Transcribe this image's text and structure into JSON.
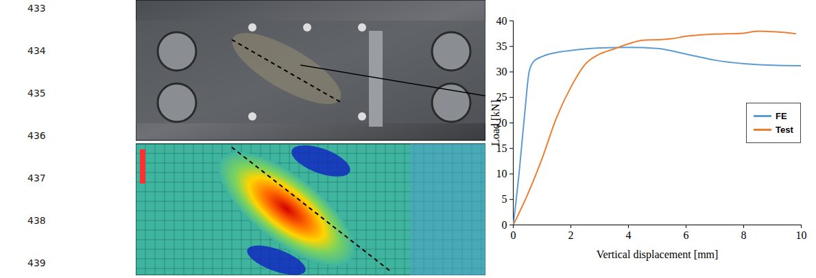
{
  "line_numbers": [
    "433",
    "434",
    "435",
    "436",
    "437",
    "438",
    "439"
  ],
  "chart_data": {
    "type": "line",
    "x_label": "Vertical displacement [mm]",
    "y_label": "Load [kN]",
    "xlim": [
      0,
      10
    ],
    "xticks": [
      0,
      2,
      4,
      6,
      8,
      10
    ],
    "ylim": [
      0,
      40
    ],
    "yticks": [
      0,
      5,
      10,
      15,
      20,
      25,
      30,
      35,
      40
    ],
    "grid": false,
    "legend": "right",
    "series": [
      {
        "name": "FE",
        "color": "#5b9bd5",
        "x": [
          0,
          0.2,
          0.4,
          0.55,
          0.7,
          1,
          1.5,
          2,
          3,
          4,
          5,
          6,
          7,
          8,
          9,
          10
        ],
        "values": [
          0,
          10,
          22,
          30,
          32,
          33,
          33.8,
          34.2,
          34.7,
          34.8,
          34.6,
          33.5,
          32.3,
          31.6,
          31.3,
          31.2
        ]
      },
      {
        "name": "Test",
        "color": "#ed7d31",
        "x": [
          0,
          0.5,
          1,
          1.5,
          2,
          2.5,
          3,
          3.5,
          4,
          4.5,
          5,
          5.5,
          6,
          7,
          8,
          8.5,
          9,
          9.5,
          9.8
        ],
        "values": [
          0,
          6,
          13,
          21,
          27,
          31.5,
          33.5,
          34.5,
          35.5,
          36.2,
          36.3,
          36.5,
          37,
          37.4,
          37.6,
          38,
          37.9,
          37.7,
          37.5
        ]
      }
    ]
  }
}
